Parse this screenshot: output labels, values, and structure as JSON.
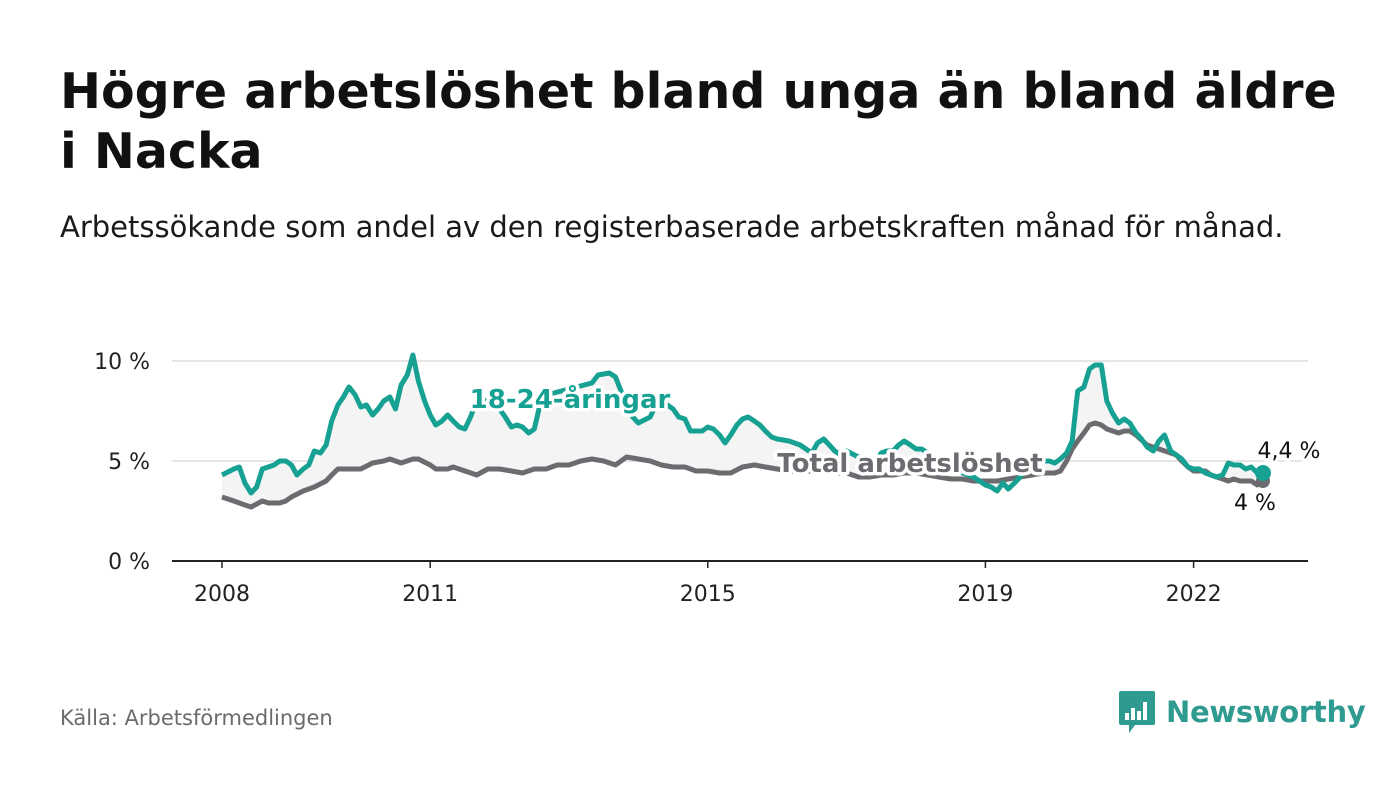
{
  "title": "Högre arbetslöshet bland unga än bland äldre i Nacka",
  "subtitle": "Arbetssökande som andel av den registerbaserade arbetskraften månad för månad.",
  "source": "Källa: Arbetsförmedlingen",
  "brand": {
    "name": "Newsworthy",
    "icon": "newsworthy-logo-icon",
    "color": "#2e9a90"
  },
  "colors": {
    "youth": "#16a192",
    "total": "#6b6b70",
    "grid": "#dddddd",
    "axis": "#222222"
  },
  "chart_data": {
    "type": "line",
    "title": "Högre arbetslöshet bland unga än bland äldre i Nacka",
    "xlabel": "",
    "ylabel": "",
    "xlim": [
      2008.0,
      2023.0
    ],
    "ylim": [
      0,
      10
    ],
    "yticks": [
      0,
      5,
      10
    ],
    "ytick_labels": [
      "0 %",
      "5 %",
      "10 %"
    ],
    "xticks": [
      2008,
      2011,
      2015,
      2019,
      2022
    ],
    "xtick_labels": [
      "2008",
      "2011",
      "2015",
      "2019",
      "2022"
    ],
    "series": [
      {
        "name": "18-24-åringar",
        "label": "18-24-åringar",
        "end_label": "4,4 %",
        "end_value": 4.4,
        "points": [
          [
            2008.0,
            4.3
          ],
          [
            2008.17,
            4.6
          ],
          [
            2008.25,
            4.7
          ],
          [
            2008.33,
            3.9
          ],
          [
            2008.42,
            3.4
          ],
          [
            2008.5,
            3.7
          ],
          [
            2008.58,
            4.6
          ],
          [
            2008.75,
            4.8
          ],
          [
            2008.83,
            5.0
          ],
          [
            2008.92,
            5.0
          ],
          [
            2009.0,
            4.8
          ],
          [
            2009.08,
            4.3
          ],
          [
            2009.17,
            4.6
          ],
          [
            2009.25,
            4.8
          ],
          [
            2009.33,
            5.5
          ],
          [
            2009.42,
            5.4
          ],
          [
            2009.5,
            5.8
          ],
          [
            2009.58,
            7.0
          ],
          [
            2009.67,
            7.8
          ],
          [
            2009.75,
            8.2
          ],
          [
            2009.83,
            8.7
          ],
          [
            2009.92,
            8.3
          ],
          [
            2010.0,
            7.7
          ],
          [
            2010.08,
            7.8
          ],
          [
            2010.17,
            7.3
          ],
          [
            2010.25,
            7.6
          ],
          [
            2010.33,
            8.0
          ],
          [
            2010.42,
            8.2
          ],
          [
            2010.5,
            7.6
          ],
          [
            2010.58,
            8.8
          ],
          [
            2010.67,
            9.3
          ],
          [
            2010.75,
            10.3
          ],
          [
            2010.83,
            9.0
          ],
          [
            2010.92,
            8.0
          ],
          [
            2011.0,
            7.3
          ],
          [
            2011.08,
            6.8
          ],
          [
            2011.17,
            7.0
          ],
          [
            2011.25,
            7.3
          ],
          [
            2011.33,
            7.0
          ],
          [
            2011.42,
            6.7
          ],
          [
            2011.5,
            6.6
          ],
          [
            2011.58,
            7.2
          ],
          [
            2011.67,
            8.0
          ],
          [
            2011.75,
            8.1
          ],
          [
            2012.0,
            7.6
          ],
          [
            2012.08,
            7.2
          ],
          [
            2012.17,
            6.7
          ],
          [
            2012.25,
            6.8
          ],
          [
            2012.33,
            6.7
          ],
          [
            2012.42,
            6.4
          ],
          [
            2012.5,
            6.6
          ],
          [
            2012.58,
            7.8
          ],
          [
            2012.67,
            8.3
          ],
          [
            2013.0,
            8.6
          ],
          [
            2013.33,
            8.9
          ],
          [
            2013.42,
            9.3
          ],
          [
            2013.58,
            9.4
          ],
          [
            2013.67,
            9.2
          ],
          [
            2013.75,
            8.5
          ],
          [
            2013.83,
            7.8
          ],
          [
            2013.92,
            7.2
          ],
          [
            2014.0,
            6.9
          ],
          [
            2014.17,
            7.2
          ],
          [
            2014.25,
            7.8
          ],
          [
            2014.42,
            7.8
          ],
          [
            2014.5,
            7.6
          ],
          [
            2014.58,
            7.2
          ],
          [
            2014.67,
            7.1
          ],
          [
            2014.75,
            6.5
          ],
          [
            2014.92,
            6.5
          ],
          [
            2015.0,
            6.7
          ],
          [
            2015.08,
            6.6
          ],
          [
            2015.17,
            6.3
          ],
          [
            2015.25,
            5.9
          ],
          [
            2015.33,
            6.3
          ],
          [
            2015.42,
            6.8
          ],
          [
            2015.5,
            7.1
          ],
          [
            2015.58,
            7.2
          ],
          [
            2015.67,
            7.0
          ],
          [
            2015.75,
            6.8
          ],
          [
            2015.83,
            6.5
          ],
          [
            2015.92,
            6.2
          ],
          [
            2016.0,
            6.1
          ],
          [
            2016.17,
            6.0
          ],
          [
            2016.25,
            5.9
          ],
          [
            2016.33,
            5.8
          ],
          [
            2016.5,
            5.4
          ],
          [
            2016.58,
            5.9
          ],
          [
            2016.67,
            6.1
          ],
          [
            2016.75,
            5.8
          ],
          [
            2016.83,
            5.5
          ],
          [
            2016.92,
            5.3
          ],
          [
            2017.0,
            5.5
          ],
          [
            2017.17,
            5.2
          ],
          [
            2017.25,
            4.9
          ],
          [
            2017.33,
            4.5
          ],
          [
            2017.5,
            5.4
          ],
          [
            2017.58,
            5.5
          ],
          [
            2017.67,
            5.5
          ],
          [
            2017.75,
            5.8
          ],
          [
            2017.83,
            6.0
          ],
          [
            2017.92,
            5.8
          ],
          [
            2018.0,
            5.6
          ],
          [
            2018.08,
            5.6
          ],
          [
            2018.17,
            5.4
          ],
          [
            2018.33,
            5.0
          ],
          [
            2018.5,
            4.7
          ],
          [
            2018.67,
            4.4
          ],
          [
            2018.83,
            4.2
          ],
          [
            2019.0,
            3.8
          ],
          [
            2019.08,
            3.7
          ],
          [
            2019.17,
            3.5
          ],
          [
            2019.25,
            3.9
          ],
          [
            2019.33,
            3.6
          ],
          [
            2019.42,
            3.9
          ],
          [
            2019.5,
            4.2
          ],
          [
            2019.58,
            4.6
          ],
          [
            2019.67,
            4.9
          ],
          [
            2019.75,
            5.0
          ],
          [
            2019.83,
            5.0
          ],
          [
            2019.92,
            5.0
          ],
          [
            2020.0,
            4.9
          ],
          [
            2020.08,
            5.1
          ],
          [
            2020.17,
            5.4
          ],
          [
            2020.25,
            6.0
          ],
          [
            2020.33,
            8.5
          ],
          [
            2020.42,
            8.7
          ],
          [
            2020.5,
            9.6
          ],
          [
            2020.58,
            9.8
          ],
          [
            2020.67,
            9.8
          ],
          [
            2020.75,
            8.0
          ],
          [
            2020.83,
            7.4
          ],
          [
            2020.92,
            6.9
          ],
          [
            2021.0,
            7.1
          ],
          [
            2021.08,
            6.9
          ],
          [
            2021.17,
            6.4
          ],
          [
            2021.25,
            6.1
          ],
          [
            2021.33,
            5.7
          ],
          [
            2021.42,
            5.5
          ],
          [
            2021.5,
            6.0
          ],
          [
            2021.58,
            6.3
          ],
          [
            2021.67,
            5.5
          ],
          [
            2021.75,
            5.3
          ],
          [
            2021.83,
            5.1
          ],
          [
            2021.92,
            4.7
          ],
          [
            2022.0,
            4.6
          ],
          [
            2022.08,
            4.6
          ],
          [
            2022.17,
            4.4
          ],
          [
            2022.25,
            4.3
          ],
          [
            2022.33,
            4.2
          ],
          [
            2022.42,
            4.3
          ],
          [
            2022.5,
            4.9
          ],
          [
            2022.58,
            4.8
          ],
          [
            2022.67,
            4.8
          ],
          [
            2022.75,
            4.6
          ],
          [
            2022.83,
            4.7
          ],
          [
            2022.92,
            4.4
          ],
          [
            2023.0,
            4.4
          ]
        ]
      },
      {
        "name": "Total arbetslöshet",
        "label": "Total arbetslöshet",
        "end_label": "4 %",
        "end_value": 4.0,
        "points": [
          [
            2008.0,
            3.2
          ],
          [
            2008.17,
            3.0
          ],
          [
            2008.33,
            2.8
          ],
          [
            2008.42,
            2.7
          ],
          [
            2008.58,
            3.0
          ],
          [
            2008.67,
            2.9
          ],
          [
            2008.83,
            2.9
          ],
          [
            2008.92,
            3.0
          ],
          [
            2009.0,
            3.2
          ],
          [
            2009.17,
            3.5
          ],
          [
            2009.33,
            3.7
          ],
          [
            2009.5,
            4.0
          ],
          [
            2009.58,
            4.3
          ],
          [
            2009.67,
            4.6
          ],
          [
            2009.83,
            4.6
          ],
          [
            2010.0,
            4.6
          ],
          [
            2010.17,
            4.9
          ],
          [
            2010.33,
            5.0
          ],
          [
            2010.42,
            5.1
          ],
          [
            2010.58,
            4.9
          ],
          [
            2010.75,
            5.1
          ],
          [
            2010.83,
            5.1
          ],
          [
            2011.0,
            4.8
          ],
          [
            2011.08,
            4.6
          ],
          [
            2011.25,
            4.6
          ],
          [
            2011.33,
            4.7
          ],
          [
            2011.5,
            4.5
          ],
          [
            2011.67,
            4.3
          ],
          [
            2011.83,
            4.6
          ],
          [
            2012.0,
            4.6
          ],
          [
            2012.17,
            4.5
          ],
          [
            2012.33,
            4.4
          ],
          [
            2012.5,
            4.6
          ],
          [
            2012.67,
            4.6
          ],
          [
            2012.83,
            4.8
          ],
          [
            2013.0,
            4.8
          ],
          [
            2013.17,
            5.0
          ],
          [
            2013.33,
            5.1
          ],
          [
            2013.5,
            5.0
          ],
          [
            2013.67,
            4.8
          ],
          [
            2013.83,
            5.2
          ],
          [
            2014.0,
            5.1
          ],
          [
            2014.17,
            5.0
          ],
          [
            2014.33,
            4.8
          ],
          [
            2014.5,
            4.7
          ],
          [
            2014.67,
            4.7
          ],
          [
            2014.83,
            4.5
          ],
          [
            2015.0,
            4.5
          ],
          [
            2015.17,
            4.4
          ],
          [
            2015.33,
            4.4
          ],
          [
            2015.5,
            4.7
          ],
          [
            2015.67,
            4.8
          ],
          [
            2015.83,
            4.7
          ],
          [
            2016.0,
            4.6
          ],
          [
            2016.17,
            4.5
          ],
          [
            2016.33,
            4.5
          ],
          [
            2016.5,
            4.5
          ],
          [
            2016.67,
            4.5
          ],
          [
            2016.83,
            4.4
          ],
          [
            2017.0,
            4.4
          ],
          [
            2017.17,
            4.2
          ],
          [
            2017.33,
            4.2
          ],
          [
            2017.5,
            4.3
          ],
          [
            2017.67,
            4.3
          ],
          [
            2017.83,
            4.4
          ],
          [
            2018.0,
            4.4
          ],
          [
            2018.17,
            4.3
          ],
          [
            2018.33,
            4.2
          ],
          [
            2018.5,
            4.1
          ],
          [
            2018.67,
            4.1
          ],
          [
            2018.83,
            4.0
          ],
          [
            2019.0,
            4.0
          ],
          [
            2019.17,
            4.0
          ],
          [
            2019.33,
            4.1
          ],
          [
            2019.5,
            4.2
          ],
          [
            2019.67,
            4.3
          ],
          [
            2019.83,
            4.4
          ],
          [
            2020.0,
            4.4
          ],
          [
            2020.08,
            4.5
          ],
          [
            2020.17,
            5.0
          ],
          [
            2020.25,
            5.6
          ],
          [
            2020.33,
            6.0
          ],
          [
            2020.42,
            6.4
          ],
          [
            2020.5,
            6.8
          ],
          [
            2020.58,
            6.9
          ],
          [
            2020.67,
            6.8
          ],
          [
            2020.75,
            6.6
          ],
          [
            2020.92,
            6.4
          ],
          [
            2021.0,
            6.5
          ],
          [
            2021.08,
            6.5
          ],
          [
            2021.17,
            6.3
          ],
          [
            2021.33,
            5.8
          ],
          [
            2021.5,
            5.6
          ],
          [
            2021.67,
            5.4
          ],
          [
            2021.75,
            5.3
          ],
          [
            2021.83,
            5.0
          ],
          [
            2021.92,
            4.7
          ],
          [
            2022.0,
            4.5
          ],
          [
            2022.17,
            4.5
          ],
          [
            2022.25,
            4.3
          ],
          [
            2022.42,
            4.1
          ],
          [
            2022.5,
            4.0
          ],
          [
            2022.58,
            4.1
          ],
          [
            2022.67,
            4.0
          ],
          [
            2022.83,
            4.0
          ],
          [
            2022.92,
            3.8
          ],
          [
            2023.0,
            4.0
          ]
        ]
      }
    ]
  }
}
